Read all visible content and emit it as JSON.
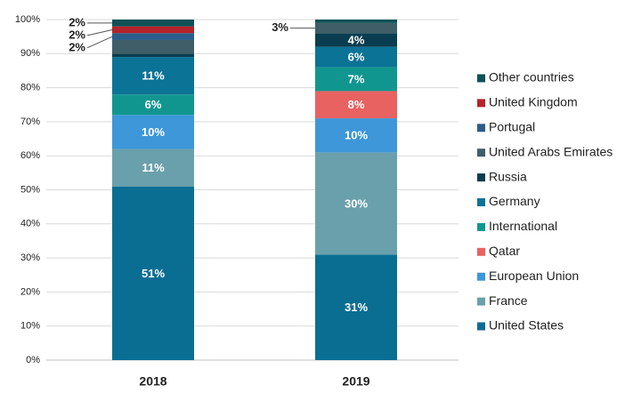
{
  "chart_data": {
    "type": "stacked_bar",
    "categories": [
      "2018",
      "2019"
    ],
    "ylim": [
      0,
      100
    ],
    "yticks": [
      {
        "value": 0,
        "label": "0%"
      },
      {
        "value": 10,
        "label": "10%"
      },
      {
        "value": 20,
        "label": "20%"
      },
      {
        "value": 30,
        "label": "30%"
      },
      {
        "value": 40,
        "label": "40%"
      },
      {
        "value": 50,
        "label": "50%"
      },
      {
        "value": 60,
        "label": "60%"
      },
      {
        "value": 70,
        "label": "70%"
      },
      {
        "value": 80,
        "label": "80%"
      },
      {
        "value": 90,
        "label": "90%"
      },
      {
        "value": 100,
        "label": "100%"
      }
    ],
    "grid": true,
    "legend": "right",
    "series": [
      {
        "name": "United States",
        "color": "#0a6e93",
        "values": [
          51,
          31
        ],
        "value_labels": [
          "51%",
          "31%"
        ]
      },
      {
        "name": "France",
        "color": "#6aa0ab",
        "values": [
          11,
          30
        ],
        "value_labels": [
          "11%",
          "30%"
        ]
      },
      {
        "name": "European Union",
        "color": "#3d97d8",
        "values": [
          10,
          10
        ],
        "value_labels": [
          "10%",
          "10%"
        ]
      },
      {
        "name": "Qatar",
        "color": "#e86262",
        "values": [
          0,
          8
        ],
        "value_labels": [
          null,
          "8%"
        ]
      },
      {
        "name": "International",
        "color": "#11968f",
        "values": [
          6,
          7
        ],
        "value_labels": [
          "6%",
          "7%"
        ]
      },
      {
        "name": "Germany",
        "color": "#0b7396",
        "values": [
          11,
          6
        ],
        "value_labels": [
          "11%",
          "6%"
        ]
      },
      {
        "name": "Russia",
        "color": "#0a3d4f",
        "values": [
          1,
          4
        ],
        "value_labels": [
          null,
          "4%"
        ]
      },
      {
        "name": "United Arabs Emirates",
        "color": "#3f5e67",
        "values": [
          4,
          3
        ],
        "value_labels": [
          null,
          "3%"
        ]
      },
      {
        "name": "Portugal",
        "color": "#2a5d8a",
        "values": [
          2,
          0
        ],
        "value_labels": [
          "2%",
          null
        ]
      },
      {
        "name": "United Kingdom",
        "color": "#b5232a",
        "values": [
          2,
          0
        ],
        "value_labels": [
          "2%",
          null
        ]
      },
      {
        "name": "Other countries",
        "color": "#0d5156",
        "values": [
          2,
          1
        ],
        "value_labels": [
          "2%",
          null
        ]
      }
    ]
  }
}
